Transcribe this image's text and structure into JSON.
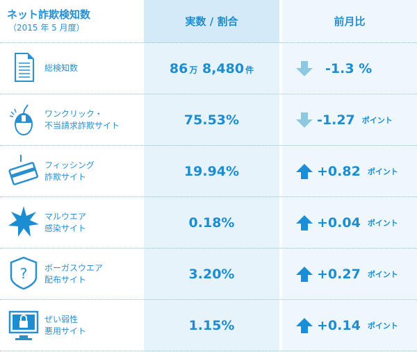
{
  "header": {
    "title": "ネット詐欺検知数",
    "subtitle": "（2015 年 5 月度）",
    "col_value": "実数 / 割合",
    "col_change": "前月比"
  },
  "colors": {
    "accent": "#1b8dd0",
    "down_arrow": "#8ec7e0",
    "up_arrow": "#1a8fd8",
    "value_column_bg": "#e6f3fb"
  },
  "rows": [
    {
      "icon": "document-icon",
      "label1": "総検知数",
      "label2": "",
      "value": "86",
      "unit1": "万",
      "value2": "8,480",
      "unit2": "件",
      "direction": "down",
      "change": "-1.3 %",
      "change_unit": ""
    },
    {
      "icon": "mouse-click-icon",
      "label1": "ワンクリック・",
      "label2": "不当請求詐欺サイト",
      "value": "75.53%",
      "direction": "down",
      "change": "-1.27",
      "change_unit": "ポイント"
    },
    {
      "icon": "credit-card-hook-icon",
      "label1": "フィッシング",
      "label2": "詐欺サイト",
      "value": "19.94%",
      "direction": "up",
      "change": "+0.82",
      "change_unit": "ポイント"
    },
    {
      "icon": "burst-icon",
      "label1": "マルウエア",
      "label2": "感染サイト",
      "value": "0.18%",
      "direction": "up",
      "change": "+0.04",
      "change_unit": "ポイント"
    },
    {
      "icon": "shield-question-icon",
      "label1": "ボーガスウエア",
      "label2": "配布サイト",
      "value": "3.20%",
      "direction": "up",
      "change": "+0.27",
      "change_unit": "ポイント"
    },
    {
      "icon": "monitor-broken-lock-icon",
      "label1": "ぜい弱性",
      "label2": "悪用サイト",
      "value": "1.15%",
      "direction": "up",
      "change": "+0.14",
      "change_unit": "ポイント"
    }
  ]
}
